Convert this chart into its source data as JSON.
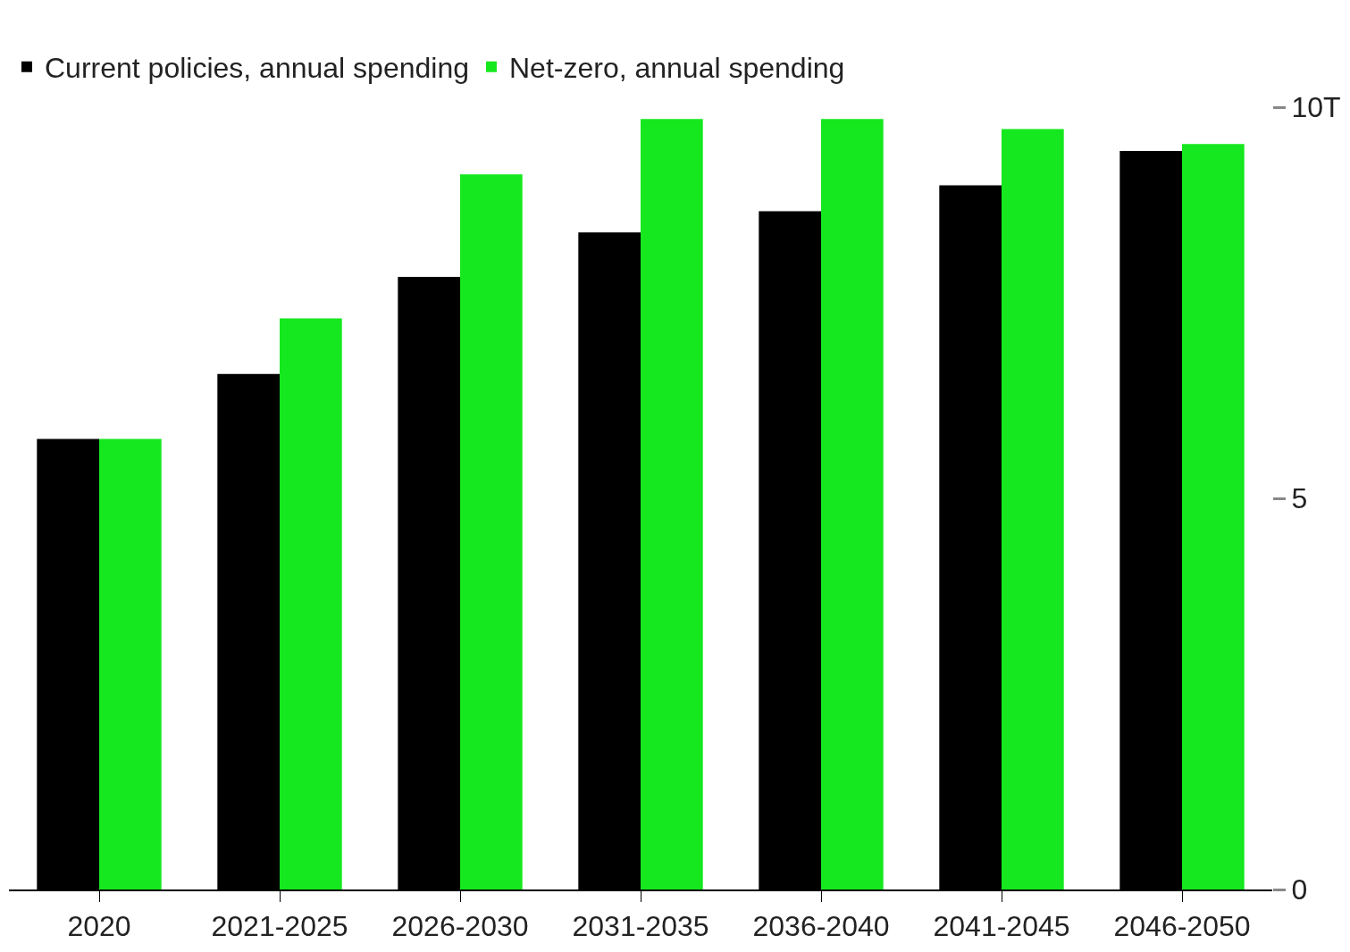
{
  "chart_data": {
    "type": "bar",
    "categories": [
      "2020",
      "2021-2025",
      "2026-2030",
      "2031-2035",
      "2036-2040",
      "2041-2045",
      "2046-2050"
    ],
    "series": [
      {
        "name": "Current policies, annual spending",
        "color": "#000000",
        "values": [
          5.76,
          6.59,
          7.83,
          8.4,
          8.67,
          9.0,
          9.44
        ]
      },
      {
        "name": "Net-zero, annual spending",
        "color": "#15e81e",
        "values": [
          5.76,
          7.3,
          9.14,
          9.85,
          9.85,
          9.72,
          9.53
        ]
      }
    ],
    "ylim": [
      0,
      10
    ],
    "yticks": [
      0,
      5,
      {
        "value": 10,
        "label": "10T"
      }
    ],
    "grid": false,
    "legend": "top left"
  }
}
